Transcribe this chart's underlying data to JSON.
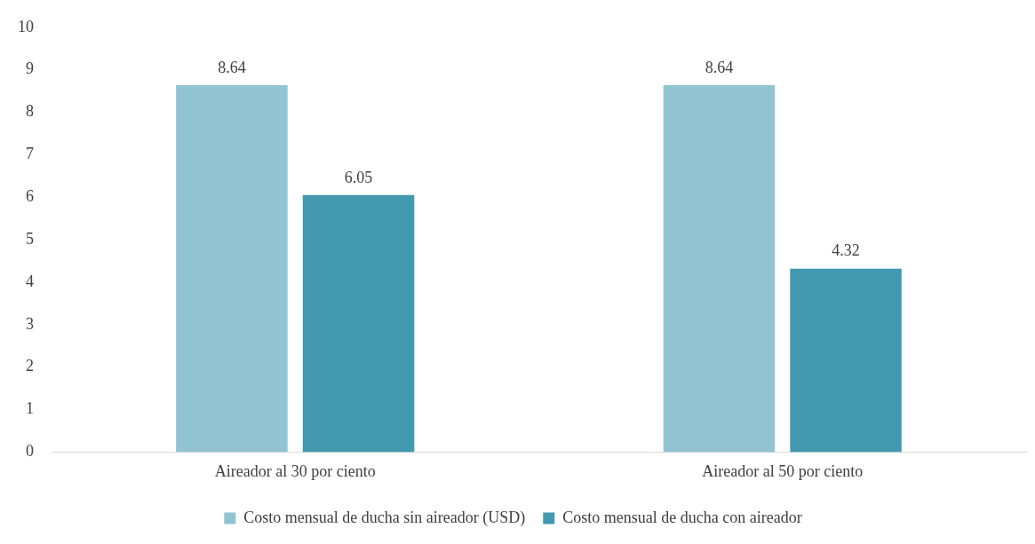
{
  "chart_data": {
    "type": "bar",
    "categories": [
      "Aireador al 30 por ciento",
      "Aireador al 50 por ciento"
    ],
    "series": [
      {
        "name": "Costo mensual de ducha sin aireador (USD)",
        "color": "#92c3d3",
        "values": [
          8.64,
          8.64
        ]
      },
      {
        "name": "Costo mensual de ducha con aireador",
        "color": "#4299b0",
        "values": [
          6.05,
          4.32
        ]
      }
    ],
    "ylim": [
      0,
      10
    ],
    "yticks": [
      0,
      1,
      2,
      3,
      4,
      5,
      6,
      7,
      8,
      9,
      10
    ],
    "grid": false,
    "legend": "bottom",
    "data_labels": true
  }
}
